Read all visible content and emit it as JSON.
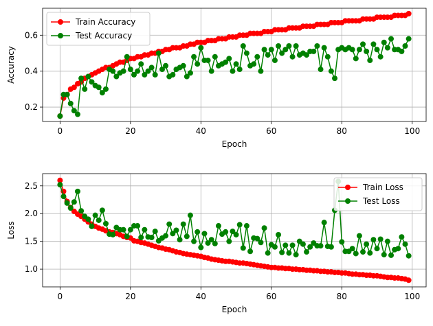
{
  "chart_data": [
    {
      "type": "line",
      "xlabel": "Epoch",
      "ylabel": "Accuracy",
      "xlim": [
        -4.95,
        103.95
      ],
      "ylim": [
        0.12,
        0.75
      ],
      "x_ticks": [
        0,
        20,
        40,
        60,
        80,
        100
      ],
      "y_ticks": [
        0.2,
        0.4,
        0.6
      ],
      "y_tick_labels": [
        "0.2",
        "0.4",
        "0.6"
      ],
      "grid": true,
      "legend_position": "top-left",
      "series": [
        {
          "name": "Train Accuracy",
          "color": "#ff0000",
          "marker": "circle",
          "x": [
            0,
            1,
            2,
            3,
            4,
            5,
            6,
            7,
            8,
            9,
            10,
            11,
            12,
            13,
            14,
            15,
            16,
            17,
            18,
            19,
            20,
            21,
            22,
            23,
            24,
            25,
            26,
            27,
            28,
            29,
            30,
            31,
            32,
            33,
            34,
            35,
            36,
            37,
            38,
            39,
            40,
            41,
            42,
            43,
            44,
            45,
            46,
            47,
            48,
            49,
            50,
            51,
            52,
            53,
            54,
            55,
            56,
            57,
            58,
            59,
            60,
            61,
            62,
            63,
            64,
            65,
            66,
            67,
            68,
            69,
            70,
            71,
            72,
            73,
            74,
            75,
            76,
            77,
            78,
            79,
            80,
            81,
            82,
            83,
            84,
            85,
            86,
            87,
            88,
            89,
            90,
            91,
            92,
            93,
            94,
            95,
            96,
            97,
            98,
            99
          ],
          "values": [
            0.15,
            0.25,
            0.27,
            0.3,
            0.31,
            0.33,
            0.34,
            0.36,
            0.37,
            0.38,
            0.39,
            0.4,
            0.41,
            0.42,
            0.42,
            0.43,
            0.44,
            0.45,
            0.45,
            0.46,
            0.47,
            0.47,
            0.48,
            0.48,
            0.49,
            0.49,
            0.5,
            0.5,
            0.51,
            0.51,
            0.52,
            0.52,
            0.53,
            0.53,
            0.53,
            0.54,
            0.54,
            0.55,
            0.55,
            0.56,
            0.56,
            0.56,
            0.57,
            0.57,
            0.57,
            0.58,
            0.58,
            0.58,
            0.59,
            0.59,
            0.59,
            0.6,
            0.6,
            0.6,
            0.61,
            0.61,
            0.61,
            0.61,
            0.62,
            0.62,
            0.62,
            0.63,
            0.63,
            0.63,
            0.63,
            0.64,
            0.64,
            0.64,
            0.64,
            0.65,
            0.65,
            0.65,
            0.65,
            0.66,
            0.66,
            0.66,
            0.66,
            0.67,
            0.67,
            0.67,
            0.67,
            0.68,
            0.68,
            0.68,
            0.68,
            0.68,
            0.69,
            0.69,
            0.69,
            0.69,
            0.7,
            0.7,
            0.7,
            0.7,
            0.7,
            0.71,
            0.71,
            0.71,
            0.71,
            0.72
          ]
        },
        {
          "name": "Test Accuracy",
          "color": "#008000",
          "marker": "circle",
          "x": [
            0,
            1,
            2,
            3,
            4,
            5,
            6,
            7,
            8,
            9,
            10,
            11,
            12,
            13,
            14,
            15,
            16,
            17,
            18,
            19,
            20,
            21,
            22,
            23,
            24,
            25,
            26,
            27,
            28,
            29,
            30,
            31,
            32,
            33,
            34,
            35,
            36,
            37,
            38,
            39,
            40,
            41,
            42,
            43,
            44,
            45,
            46,
            47,
            48,
            49,
            50,
            51,
            52,
            53,
            54,
            55,
            56,
            57,
            58,
            59,
            60,
            61,
            62,
            63,
            64,
            65,
            66,
            67,
            68,
            69,
            70,
            71,
            72,
            73,
            74,
            75,
            76,
            77,
            78,
            79,
            80,
            81,
            82,
            83,
            84,
            85,
            86,
            87,
            88,
            89,
            90,
            91,
            92,
            93,
            94,
            95,
            96,
            97,
            98,
            99
          ],
          "values": [
            0.15,
            0.27,
            0.27,
            0.22,
            0.18,
            0.16,
            0.36,
            0.3,
            0.37,
            0.34,
            0.32,
            0.31,
            0.28,
            0.3,
            0.41,
            0.4,
            0.37,
            0.39,
            0.4,
            0.48,
            0.41,
            0.38,
            0.4,
            0.44,
            0.38,
            0.4,
            0.42,
            0.38,
            0.5,
            0.41,
            0.43,
            0.37,
            0.38,
            0.41,
            0.42,
            0.43,
            0.37,
            0.39,
            0.48,
            0.44,
            0.53,
            0.46,
            0.46,
            0.4,
            0.48,
            0.43,
            0.44,
            0.45,
            0.47,
            0.4,
            0.44,
            0.41,
            0.54,
            0.5,
            0.43,
            0.44,
            0.48,
            0.4,
            0.52,
            0.49,
            0.52,
            0.46,
            0.54,
            0.5,
            0.52,
            0.54,
            0.48,
            0.54,
            0.49,
            0.5,
            0.49,
            0.51,
            0.51,
            0.54,
            0.41,
            0.53,
            0.48,
            0.4,
            0.36,
            0.52,
            0.53,
            0.52,
            0.53,
            0.52,
            0.47,
            0.52,
            0.55,
            0.51,
            0.46,
            0.55,
            0.52,
            0.48,
            0.56,
            0.53,
            0.58,
            0.52,
            0.52,
            0.51,
            0.54,
            0.58
          ]
        }
      ]
    },
    {
      "type": "line",
      "xlabel": "Epoch",
      "ylabel": "Loss",
      "xlim": [
        -4.95,
        103.95
      ],
      "ylim": [
        0.68,
        2.72
      ],
      "x_ticks": [
        0,
        20,
        40,
        60,
        80,
        100
      ],
      "y_ticks": [
        1.0,
        1.5,
        2.0,
        2.5
      ],
      "y_tick_labels": [
        "1.0",
        "1.5",
        "2.0",
        "2.5"
      ],
      "grid": true,
      "legend_position": "top-right",
      "series": [
        {
          "name": "Train Loss",
          "color": "#ff0000",
          "marker": "circle",
          "x": [
            0,
            1,
            2,
            3,
            4,
            5,
            6,
            7,
            8,
            9,
            10,
            11,
            12,
            13,
            14,
            15,
            16,
            17,
            18,
            19,
            20,
            21,
            22,
            23,
            24,
            25,
            26,
            27,
            28,
            29,
            30,
            31,
            32,
            33,
            34,
            35,
            36,
            37,
            38,
            39,
            40,
            41,
            42,
            43,
            44,
            45,
            46,
            47,
            48,
            49,
            50,
            51,
            52,
            53,
            54,
            55,
            56,
            57,
            58,
            59,
            60,
            61,
            62,
            63,
            64,
            65,
            66,
            67,
            68,
            69,
            70,
            71,
            72,
            73,
            74,
            75,
            76,
            77,
            78,
            79,
            80,
            81,
            82,
            83,
            84,
            85,
            86,
            87,
            88,
            89,
            90,
            91,
            92,
            93,
            94,
            95,
            96,
            97,
            98,
            99
          ],
          "values": [
            2.6,
            2.4,
            2.22,
            2.11,
            2.04,
            1.99,
            1.95,
            1.9,
            1.85,
            1.81,
            1.77,
            1.74,
            1.72,
            1.69,
            1.67,
            1.66,
            1.64,
            1.62,
            1.59,
            1.57,
            1.56,
            1.51,
            1.5,
            1.48,
            1.47,
            1.45,
            1.43,
            1.41,
            1.39,
            1.38,
            1.36,
            1.35,
            1.33,
            1.31,
            1.3,
            1.28,
            1.27,
            1.26,
            1.25,
            1.24,
            1.23,
            1.21,
            1.2,
            1.18,
            1.17,
            1.16,
            1.15,
            1.14,
            1.14,
            1.13,
            1.12,
            1.11,
            1.11,
            1.1,
            1.09,
            1.08,
            1.07,
            1.06,
            1.05,
            1.04,
            1.03,
            1.03,
            1.02,
            1.02,
            1.01,
            1.01,
            1.0,
            1.0,
            0.99,
            0.99,
            0.98,
            0.98,
            0.97,
            0.97,
            0.96,
            0.96,
            0.95,
            0.95,
            0.94,
            0.94,
            0.93,
            0.93,
            0.92,
            0.91,
            0.91,
            0.9,
            0.9,
            0.89,
            0.89,
            0.88,
            0.88,
            0.87,
            0.86,
            0.85,
            0.85,
            0.84,
            0.84,
            0.83,
            0.82,
            0.8
          ]
        },
        {
          "name": "Test Loss",
          "color": "#008000",
          "marker": "circle",
          "x": [
            0,
            1,
            2,
            3,
            4,
            5,
            6,
            7,
            8,
            9,
            10,
            11,
            12,
            13,
            14,
            15,
            16,
            17,
            18,
            19,
            20,
            21,
            22,
            23,
            24,
            25,
            26,
            27,
            28,
            29,
            30,
            31,
            32,
            33,
            34,
            35,
            36,
            37,
            38,
            39,
            40,
            41,
            42,
            43,
            44,
            45,
            46,
            47,
            48,
            49,
            50,
            51,
            52,
            53,
            54,
            55,
            56,
            57,
            58,
            59,
            60,
            61,
            62,
            63,
            64,
            65,
            66,
            67,
            68,
            69,
            70,
            71,
            72,
            73,
            74,
            75,
            76,
            77,
            78,
            79,
            80,
            81,
            82,
            83,
            84,
            85,
            86,
            87,
            88,
            89,
            90,
            91,
            92,
            93,
            94,
            95,
            96,
            97,
            98,
            99
          ],
          "values": [
            2.52,
            2.31,
            2.19,
            2.1,
            2.21,
            2.4,
            2.05,
            1.95,
            1.9,
            1.77,
            1.97,
            1.88,
            2.06,
            1.82,
            1.63,
            1.62,
            1.75,
            1.71,
            1.71,
            1.59,
            1.71,
            1.78,
            1.78,
            1.57,
            1.71,
            1.58,
            1.57,
            1.68,
            1.51,
            1.56,
            1.6,
            1.81,
            1.64,
            1.7,
            1.53,
            1.81,
            1.59,
            1.97,
            1.5,
            1.67,
            1.39,
            1.64,
            1.47,
            1.53,
            1.46,
            1.78,
            1.63,
            1.67,
            1.5,
            1.68,
            1.62,
            1.8,
            1.38,
            1.78,
            1.32,
            1.56,
            1.55,
            1.48,
            1.74,
            1.29,
            1.44,
            1.4,
            1.62,
            1.3,
            1.43,
            1.29,
            1.43,
            1.26,
            1.5,
            1.45,
            1.31,
            1.4,
            1.47,
            1.42,
            1.42,
            1.84,
            1.41,
            1.4,
            2.06,
            2.58,
            1.49,
            1.32,
            1.32,
            1.37,
            1.28,
            1.6,
            1.31,
            1.45,
            1.29,
            1.53,
            1.37,
            1.54,
            1.26,
            1.5,
            1.25,
            1.35,
            1.37,
            1.58,
            1.45,
            1.24
          ]
        }
      ]
    }
  ]
}
